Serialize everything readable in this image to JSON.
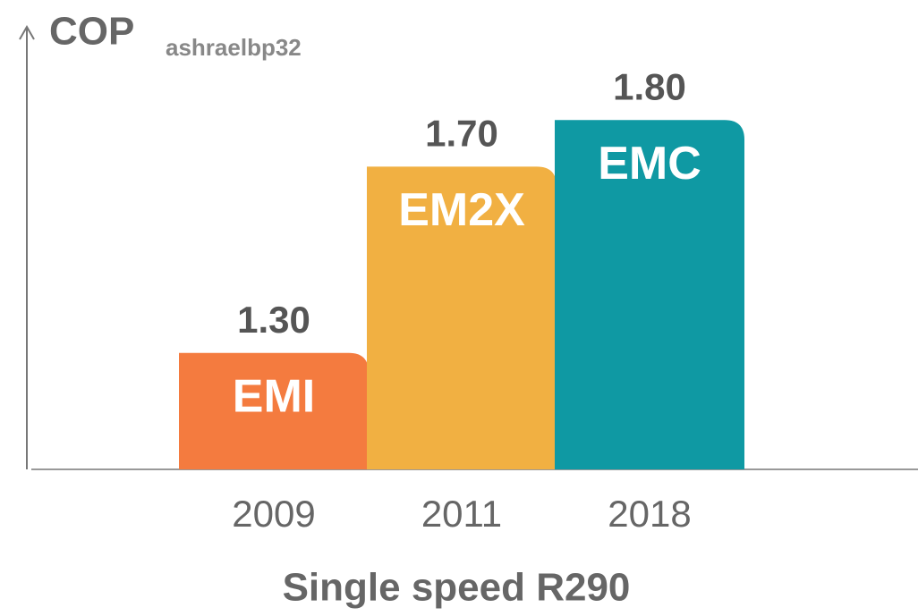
{
  "chart_data": {
    "type": "bar",
    "ylabel": "COP",
    "ylabel_note": "ashraelbp32",
    "xlabel": "Single speed R290",
    "categories": [
      "2009",
      "2011",
      "2018"
    ],
    "values": [
      1.3,
      1.7,
      1.8
    ],
    "value_labels": [
      "1.30",
      "1.70",
      "1.80"
    ],
    "bar_labels": [
      "EMI",
      "EM2X",
      "EMC"
    ],
    "colors": [
      "#f47b3f",
      "#f1b042",
      "#0f99a3"
    ],
    "ylim": [
      1.05,
      2.0
    ]
  }
}
